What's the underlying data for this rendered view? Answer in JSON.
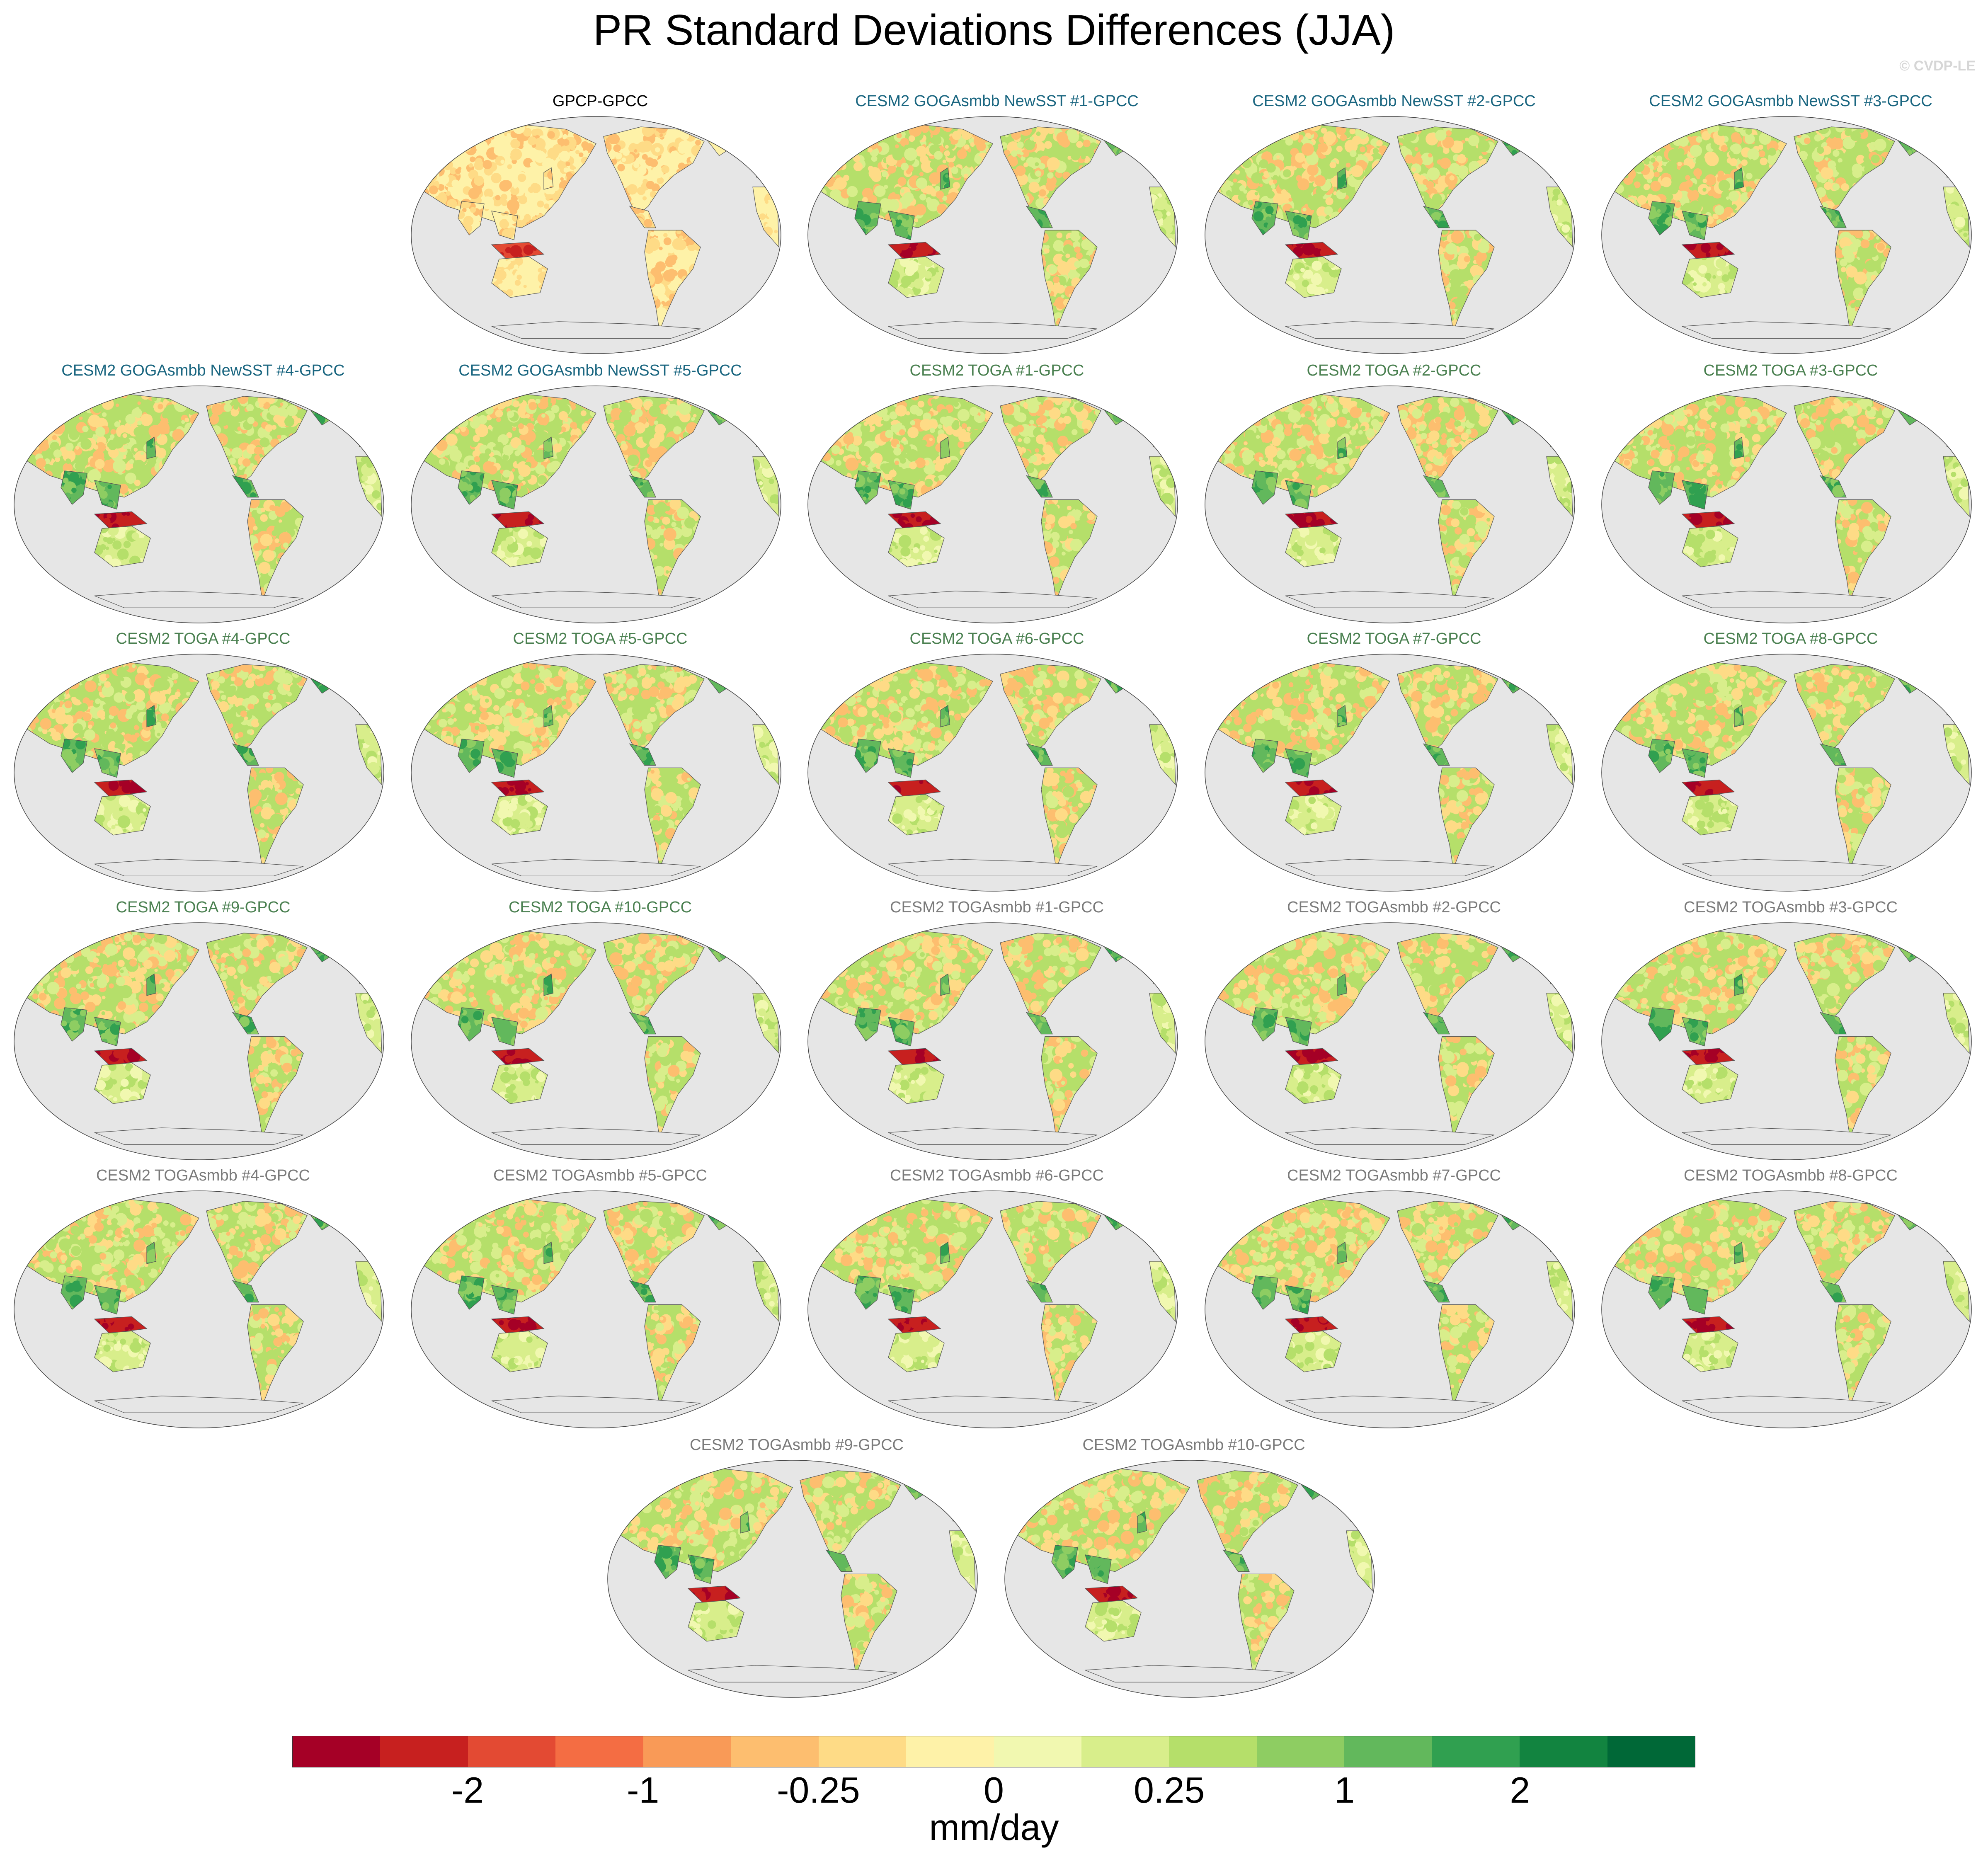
{
  "title": "PR Standard Deviations Differences (JJA)",
  "watermark": "© CVDP-LE",
  "colors": {
    "ocean": "#e6e6e6",
    "coast": "#555555",
    "group_obs": "#000000",
    "group_goga": "#1a6680",
    "group_toga": "#4a8050",
    "group_togasmbb": "#7a7a7a"
  },
  "chart_data": {
    "type": "heatmap",
    "description_variable": "PR standard deviation difference",
    "season": "JJA",
    "panels": [
      {
        "title": "GPCP-GPCC",
        "group": "obs"
      },
      {
        "title": "CESM2 GOGAsmbb NewSST #1-GPCC",
        "group": "goga"
      },
      {
        "title": "CESM2 GOGAsmbb NewSST #2-GPCC",
        "group": "goga"
      },
      {
        "title": "CESM2 GOGAsmbb NewSST #3-GPCC",
        "group": "goga"
      },
      {
        "title": "CESM2 GOGAsmbb NewSST #4-GPCC",
        "group": "goga"
      },
      {
        "title": "CESM2 GOGAsmbb NewSST #5-GPCC",
        "group": "goga"
      },
      {
        "title": "CESM2 TOGA #1-GPCC",
        "group": "toga"
      },
      {
        "title": "CESM2 TOGA #2-GPCC",
        "group": "toga"
      },
      {
        "title": "CESM2 TOGA #3-GPCC",
        "group": "toga"
      },
      {
        "title": "CESM2 TOGA #4-GPCC",
        "group": "toga"
      },
      {
        "title": "CESM2 TOGA #5-GPCC",
        "group": "toga"
      },
      {
        "title": "CESM2 TOGA #6-GPCC",
        "group": "toga"
      },
      {
        "title": "CESM2 TOGA #7-GPCC",
        "group": "toga"
      },
      {
        "title": "CESM2 TOGA #8-GPCC",
        "group": "toga"
      },
      {
        "title": "CESM2 TOGA #9-GPCC",
        "group": "toga"
      },
      {
        "title": "CESM2 TOGA #10-GPCC",
        "group": "toga"
      },
      {
        "title": "CESM2 TOGAsmbb #1-GPCC",
        "group": "togasmbb"
      },
      {
        "title": "CESM2 TOGAsmbb #2-GPCC",
        "group": "togasmbb"
      },
      {
        "title": "CESM2 TOGAsmbb #3-GPCC",
        "group": "togasmbb"
      },
      {
        "title": "CESM2 TOGAsmbb #4-GPCC",
        "group": "togasmbb"
      },
      {
        "title": "CESM2 TOGAsmbb #5-GPCC",
        "group": "togasmbb"
      },
      {
        "title": "CESM2 TOGAsmbb #6-GPCC",
        "group": "togasmbb"
      },
      {
        "title": "CESM2 TOGAsmbb #7-GPCC",
        "group": "togasmbb"
      },
      {
        "title": "CESM2 TOGAsmbb #8-GPCC",
        "group": "togasmbb"
      },
      {
        "title": "CESM2 TOGAsmbb #9-GPCC",
        "group": "togasmbb"
      },
      {
        "title": "CESM2 TOGAsmbb #10-GPCC",
        "group": "togasmbb"
      }
    ],
    "colorbar": {
      "label": "mm/day",
      "ticks": [
        "-2",
        "-1",
        "-0.25",
        "0",
        "0.25",
        "1",
        "2"
      ],
      "colors": [
        "#a50026",
        "#c7201f",
        "#e34a33",
        "#f46d43",
        "#f99a57",
        "#fdbe6f",
        "#fedb86",
        "#fef2a8",
        "#f1f8b0",
        "#d8ee8b",
        "#b5df6a",
        "#8ecd62",
        "#62b85c",
        "#30a050",
        "#128440",
        "#006837"
      ]
    }
  }
}
